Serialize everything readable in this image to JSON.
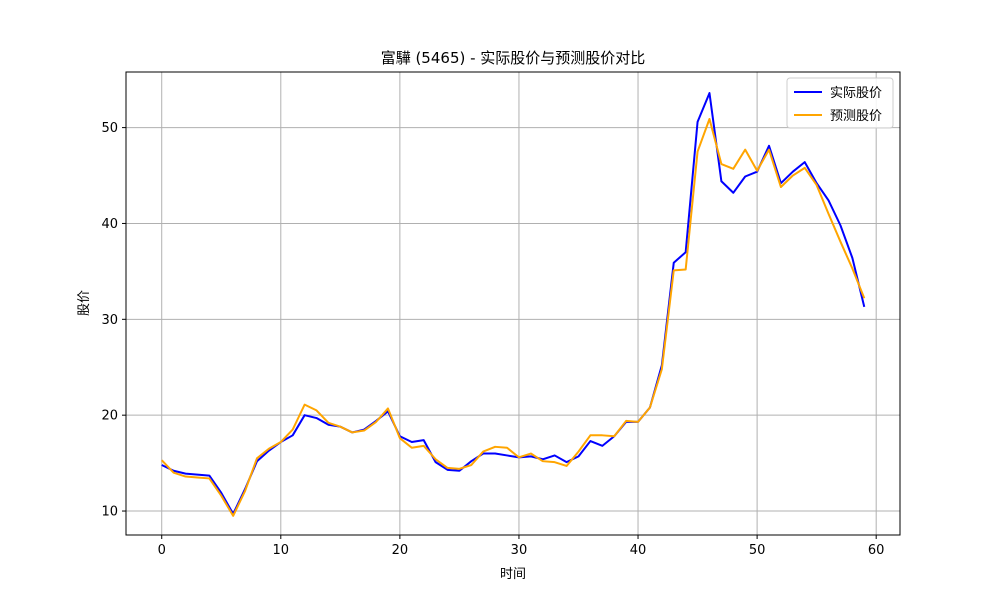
{
  "chart_data": {
    "type": "line",
    "title": "富驊 (5465) - 实际股价与预测股价对比",
    "xlabel": "时间",
    "ylabel": "股价",
    "xlim": [
      -3,
      62
    ],
    "ylim": [
      7.5,
      55.8
    ],
    "xticks": [
      0,
      10,
      20,
      30,
      40,
      50,
      60
    ],
    "yticks": [
      10,
      20,
      30,
      40,
      50
    ],
    "grid": true,
    "legend_position": "top-right",
    "x": [
      0,
      1,
      2,
      3,
      4,
      5,
      6,
      7,
      8,
      9,
      10,
      11,
      12,
      13,
      14,
      15,
      16,
      17,
      18,
      19,
      20,
      21,
      22,
      23,
      24,
      25,
      26,
      27,
      28,
      29,
      30,
      31,
      32,
      33,
      34,
      35,
      36,
      37,
      38,
      39,
      40,
      41,
      42,
      43,
      44,
      45,
      46,
      47,
      48,
      49,
      50,
      51,
      52,
      53,
      54,
      55,
      56,
      57,
      58,
      59
    ],
    "series": [
      {
        "name": "实际股价",
        "color": "#0000ff",
        "values": [
          14.8,
          14.2,
          13.9,
          13.8,
          13.7,
          11.9,
          9.7,
          12.3,
          15.2,
          16.3,
          17.2,
          17.9,
          20.0,
          19.7,
          19.0,
          18.8,
          18.2,
          18.5,
          19.4,
          20.4,
          17.8,
          17.2,
          17.4,
          15.1,
          14.3,
          14.2,
          15.2,
          16.0,
          16.0,
          15.8,
          15.6,
          15.7,
          15.4,
          15.8,
          15.1,
          15.7,
          17.3,
          16.8,
          17.8,
          19.3,
          19.3,
          20.8,
          25.2,
          35.9,
          37.0,
          50.6,
          53.6,
          44.4,
          43.2,
          44.9,
          45.4,
          48.1,
          44.2,
          45.4,
          46.4,
          44.2,
          42.4,
          39.8,
          36.4,
          31.3
        ]
      },
      {
        "name": "预测股价",
        "color": "#ffa500",
        "values": [
          15.3,
          14.0,
          13.6,
          13.5,
          13.4,
          11.6,
          9.5,
          12.1,
          15.5,
          16.5,
          17.2,
          18.5,
          21.1,
          20.5,
          19.2,
          18.8,
          18.2,
          18.4,
          19.3,
          20.7,
          17.6,
          16.6,
          16.8,
          15.4,
          14.5,
          14.4,
          14.8,
          16.2,
          16.7,
          16.6,
          15.6,
          16.0,
          15.2,
          15.1,
          14.7,
          16.2,
          17.9,
          17.9,
          17.8,
          19.4,
          19.3,
          20.8,
          24.8,
          35.1,
          35.2,
          47.5,
          50.9,
          46.2,
          45.7,
          47.7,
          45.5,
          47.7,
          43.8,
          45.0,
          45.8,
          44.0,
          41.0,
          38.1,
          35.3,
          32.2
        ]
      }
    ]
  }
}
